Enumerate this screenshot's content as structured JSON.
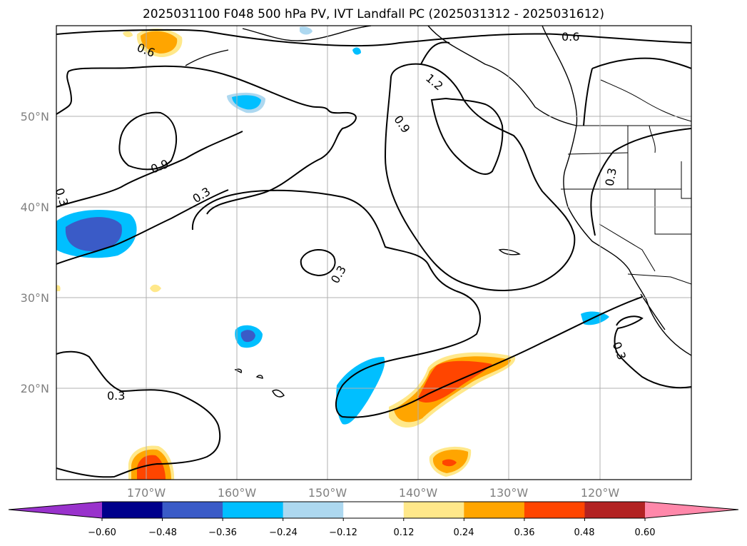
{
  "title": "2025031100 F048 500 hPa PV, IVT Landfall PC (2025031312 - 2025031612)",
  "map": {
    "lat_labels": [
      "50°N",
      "40°N",
      "30°N",
      "20°N"
    ],
    "lon_labels": [
      "170°W",
      "160°W",
      "150°W",
      "140°W",
      "130°W",
      "120°W"
    ],
    "contour_labels": [
      "0.6",
      "0.6",
      "1.2",
      "0.9",
      "0.9",
      "0.3",
      "0.3",
      "0.3",
      "0.3",
      "0.3",
      "0.3"
    ],
    "gridlines": true
  },
  "colorbar": {
    "colors": [
      "#9932cc",
      "#00008b",
      "#3a5bc7",
      "#00bfff",
      "#add8f0",
      "#ffffff",
      "#ffe88a",
      "#ffa500",
      "#ff4500",
      "#b22222",
      "#ff88aa"
    ],
    "tick_labels": [
      "−0.60",
      "−0.48",
      "−0.36",
      "−0.24",
      "−0.12",
      "0.12",
      "0.24",
      "0.36",
      "0.48",
      "0.60"
    ]
  }
}
